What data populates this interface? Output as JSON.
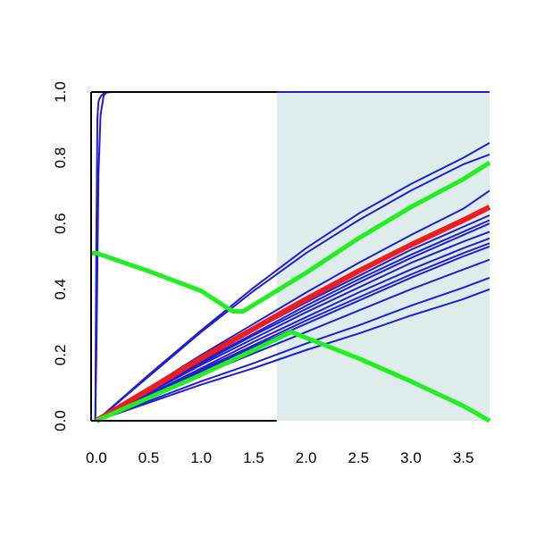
{
  "chart_data": {
    "type": "line",
    "title": "",
    "xlabel": "",
    "ylabel": "",
    "xlim": [
      -0.05,
      3.75
    ],
    "ylim": [
      0.0,
      1.0
    ],
    "x_ticks": [
      0.0,
      0.5,
      1.0,
      1.5,
      2.0,
      2.5,
      3.0,
      3.5
    ],
    "x_tick_labels": [
      "0.0",
      "0.5",
      "1.0",
      "1.5",
      "2.0",
      "2.5",
      "3.0",
      "3.5"
    ],
    "y_ticks": [
      0.0,
      0.2,
      0.4,
      0.6,
      0.8,
      1.0
    ],
    "y_tick_labels": [
      "0.0",
      "0.2",
      "0.4",
      "0.6",
      "0.8",
      "1.0"
    ],
    "grid": false,
    "legend": "none",
    "shaded_region": {
      "x_from": 1.72,
      "x_to": 3.75,
      "color": "#deecec"
    },
    "reference_lines": [
      {
        "axis": "y",
        "value": 1.0,
        "color": "#000000"
      }
    ],
    "colors": {
      "blue": "#1f1fd2",
      "red": "#ee1c1c",
      "green": "#22ee22",
      "axis": "#000000",
      "shade": "#deecec"
    },
    "series": [
      {
        "color": "#1f1fd2",
        "width": 2,
        "x": [
          -0.01,
          0.0,
          0.01,
          0.02,
          0.03,
          0.05,
          0.08,
          0.15,
          0.3,
          3.75
        ],
        "y": [
          0.0,
          0.55,
          0.92,
          0.97,
          0.98,
          0.99,
          0.998,
          1.0,
          1.0,
          1.0
        ]
      },
      {
        "color": "#1f1fd2",
        "width": 2,
        "x": [
          -0.01,
          0.0,
          0.02,
          0.04,
          0.07,
          0.1,
          0.2,
          3.75
        ],
        "y": [
          0.0,
          0.2,
          0.75,
          0.93,
          0.99,
          1.0,
          1.0,
          1.0
        ]
      },
      {
        "color": "#1f1fd2",
        "width": 2,
        "x": [
          0.0,
          0.5,
          1.0,
          1.5,
          2.0,
          2.5,
          3.0,
          3.5,
          3.75
        ],
        "y": [
          0.0,
          0.135,
          0.27,
          0.395,
          0.51,
          0.61,
          0.7,
          0.78,
          0.81
        ]
      },
      {
        "color": "#1f1fd2",
        "width": 2,
        "x": [
          0.0,
          0.5,
          1.0,
          1.5,
          2.0,
          2.5,
          3.0,
          3.5,
          3.75
        ],
        "y": [
          0.0,
          0.14,
          0.275,
          0.405,
          0.525,
          0.63,
          0.72,
          0.8,
          0.845
        ]
      },
      {
        "color": "#1f1fd2",
        "width": 2,
        "x": [
          0.0,
          0.5,
          1.0,
          1.5,
          2.0,
          2.5,
          3.0,
          3.5,
          3.75
        ],
        "y": [
          0.0,
          0.1,
          0.2,
          0.295,
          0.39,
          0.48,
          0.565,
          0.645,
          0.7
        ]
      },
      {
        "color": "#1f1fd2",
        "width": 2,
        "x": [
          0.0,
          0.5,
          1.0,
          1.5,
          2.0,
          2.5,
          3.0,
          3.5,
          3.75
        ],
        "y": [
          0.0,
          0.095,
          0.185,
          0.275,
          0.36,
          0.44,
          0.52,
          0.59,
          0.625
        ]
      },
      {
        "color": "#1f1fd2",
        "width": 2,
        "x": [
          0.0,
          0.5,
          1.0,
          1.5,
          2.0,
          2.5,
          3.0,
          3.5,
          3.75
        ],
        "y": [
          0.0,
          0.09,
          0.18,
          0.265,
          0.35,
          0.43,
          0.505,
          0.575,
          0.61
        ]
      },
      {
        "color": "#1f1fd2",
        "width": 2,
        "x": [
          0.0,
          0.5,
          1.0,
          1.5,
          2.0,
          2.5,
          3.0,
          3.5,
          3.75
        ],
        "y": [
          0.0,
          0.09,
          0.175,
          0.26,
          0.34,
          0.42,
          0.495,
          0.565,
          0.6
        ]
      },
      {
        "color": "#1f1fd2",
        "width": 2,
        "x": [
          0.0,
          0.5,
          1.0,
          1.5,
          2.0,
          2.5,
          3.0,
          3.5,
          3.75
        ],
        "y": [
          0.0,
          0.085,
          0.17,
          0.25,
          0.33,
          0.405,
          0.48,
          0.545,
          0.575
        ]
      },
      {
        "color": "#1f1fd2",
        "width": 2,
        "x": [
          0.0,
          0.5,
          1.0,
          1.5,
          2.0,
          2.5,
          3.0,
          3.5,
          3.75
        ],
        "y": [
          0.0,
          0.08,
          0.16,
          0.24,
          0.315,
          0.39,
          0.46,
          0.525,
          0.555
        ]
      },
      {
        "color": "#1f1fd2",
        "width": 2,
        "x": [
          0.0,
          0.5,
          1.0,
          1.5,
          2.0,
          2.5,
          3.0,
          3.5,
          3.75
        ],
        "y": [
          0.0,
          0.08,
          0.155,
          0.23,
          0.305,
          0.375,
          0.445,
          0.51,
          0.54
        ]
      },
      {
        "color": "#1f1fd2",
        "width": 2,
        "x": [
          0.0,
          0.5,
          1.0,
          1.5,
          2.0,
          2.5,
          3.0,
          3.5,
          3.75
        ],
        "y": [
          0.0,
          0.075,
          0.15,
          0.225,
          0.295,
          0.365,
          0.435,
          0.5,
          0.53
        ]
      },
      {
        "color": "#1f1fd2",
        "width": 2,
        "x": [
          0.0,
          0.5,
          1.0,
          1.5,
          2.0,
          2.5,
          3.0,
          3.5,
          3.75
        ],
        "y": [
          0.0,
          0.07,
          0.14,
          0.205,
          0.27,
          0.335,
          0.4,
          0.46,
          0.49
        ]
      },
      {
        "color": "#1f1fd2",
        "width": 2,
        "x": [
          0.0,
          0.5,
          1.0,
          1.5,
          2.0,
          2.5,
          3.0,
          3.5,
          3.75
        ],
        "y": [
          0.0,
          0.06,
          0.12,
          0.175,
          0.235,
          0.29,
          0.35,
          0.405,
          0.435
        ]
      },
      {
        "color": "#1f1fd2",
        "width": 2,
        "x": [
          0.0,
          0.5,
          1.0,
          1.5,
          2.0,
          2.5,
          3.0,
          3.5,
          3.75
        ],
        "y": [
          0.0,
          0.055,
          0.11,
          0.16,
          0.215,
          0.265,
          0.32,
          0.37,
          0.4
        ]
      },
      {
        "color": "#ee1c1c",
        "width": 6,
        "x": [
          0.0,
          0.5,
          1.0,
          1.5,
          2.0,
          2.5,
          3.0,
          3.5,
          3.75
        ],
        "y": [
          0.0,
          0.095,
          0.19,
          0.28,
          0.37,
          0.455,
          0.535,
          0.61,
          0.65
        ]
      },
      {
        "color": "#22ee22",
        "width": 5,
        "x": [
          -0.05,
          0.0,
          0.5,
          1.0,
          1.3,
          1.4,
          2.0,
          2.5,
          3.0,
          3.5,
          3.75
        ],
        "y": [
          0.51,
          0.51,
          0.455,
          0.395,
          0.333,
          0.333,
          0.45,
          0.555,
          0.65,
          0.735,
          0.785
        ]
      },
      {
        "color": "#22ee22",
        "width": 5,
        "x": [
          0.0,
          0.5,
          1.0,
          1.5,
          1.86,
          2.5,
          3.0,
          3.5,
          3.75
        ],
        "y": [
          0.0,
          0.07,
          0.14,
          0.215,
          0.27,
          0.19,
          0.12,
          0.045,
          0.0
        ]
      }
    ]
  }
}
